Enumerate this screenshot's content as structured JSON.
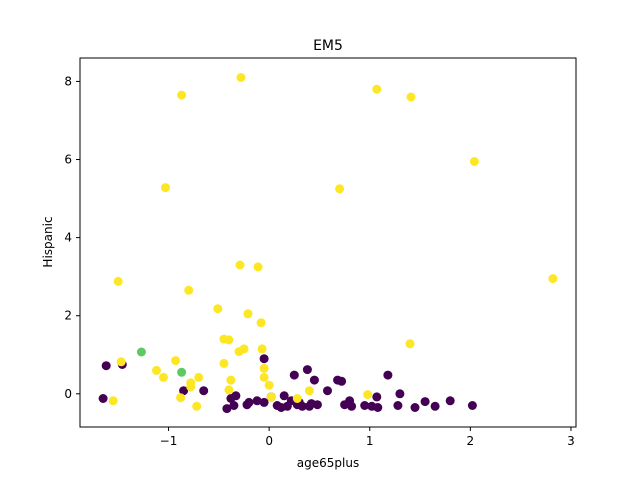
{
  "chart_data": {
    "type": "scatter",
    "title": "EM5",
    "xlabel": "age65plus",
    "ylabel": "Hispanic",
    "xlim": [
      -1.88,
      3.05
    ],
    "ylim": [
      -0.85,
      8.6
    ],
    "x_ticks": [
      -1,
      0,
      1,
      2,
      3
    ],
    "y_ticks": [
      0,
      2,
      4,
      6,
      8
    ],
    "x_tick_labels": [
      "−1",
      "0",
      "1",
      "2",
      "3"
    ],
    "y_tick_labels": [
      "0",
      "2",
      "4",
      "6",
      "8"
    ],
    "grid": false,
    "legend": "none",
    "colors": {
      "dark": "#440154",
      "yellow": "#fde725",
      "green": "#5ec962"
    },
    "series": [
      {
        "color_key": "dark",
        "x": [
          -1.65,
          -1.62,
          -1.46,
          -0.85,
          -0.65,
          -0.42,
          -0.38,
          -0.35,
          -0.33,
          -0.22,
          -0.2,
          -0.12,
          -0.05,
          -0.05,
          0.02,
          0.08,
          0.12,
          0.15,
          0.18,
          0.22,
          0.25,
          0.28,
          0.3,
          0.33,
          0.38,
          0.4,
          0.42,
          0.45,
          0.48,
          0.58,
          0.68,
          0.72,
          0.75,
          0.8,
          0.82,
          0.95,
          1.02,
          1.07,
          1.08,
          1.18,
          1.28,
          1.3,
          1.45,
          1.55,
          1.65,
          1.8,
          2.02
        ],
        "y": [
          -0.12,
          0.72,
          0.75,
          0.08,
          0.08,
          -0.38,
          -0.12,
          -0.3,
          -0.05,
          -0.28,
          -0.22,
          -0.18,
          0.9,
          -0.22,
          -0.08,
          -0.3,
          -0.35,
          -0.05,
          -0.32,
          -0.18,
          0.48,
          -0.28,
          -0.22,
          -0.32,
          0.62,
          -0.32,
          -0.25,
          0.35,
          -0.28,
          0.08,
          0.35,
          0.32,
          -0.28,
          -0.18,
          -0.32,
          -0.3,
          -0.32,
          -0.08,
          -0.35,
          0.48,
          -0.3,
          0.0,
          -0.35,
          -0.2,
          -0.32,
          -0.18,
          -0.3
        ]
      },
      {
        "color_key": "yellow",
        "x": [
          -0.28,
          -0.87,
          1.07,
          1.41,
          2.04,
          -1.03,
          0.7,
          -0.29,
          -0.11,
          -1.5,
          2.82,
          -0.8,
          -0.51,
          -0.21,
          -0.45,
          -0.4,
          -0.3,
          -0.08,
          1.4,
          -0.07,
          -0.25,
          -1.47,
          -0.93,
          -1.12,
          -1.05,
          -0.45,
          -0.05,
          -0.7,
          -0.05,
          -0.38,
          -0.78,
          -0.78,
          0.0,
          -0.4,
          0.4,
          -0.88,
          -0.72,
          -1.55,
          0.98,
          0.28,
          0.02
        ],
        "y": [
          8.1,
          7.65,
          7.8,
          7.6,
          5.95,
          5.28,
          5.25,
          3.3,
          3.25,
          2.88,
          2.95,
          2.65,
          2.18,
          2.05,
          1.4,
          1.38,
          1.08,
          1.82,
          1.28,
          1.15,
          1.15,
          0.82,
          0.85,
          0.6,
          0.42,
          0.78,
          0.65,
          0.42,
          0.42,
          0.35,
          0.28,
          0.18,
          0.22,
          0.1,
          0.08,
          -0.1,
          -0.32,
          -0.18,
          -0.02,
          -0.12,
          -0.08
        ]
      },
      {
        "color_key": "green",
        "x": [
          -1.27,
          -0.87
        ],
        "y": [
          1.07,
          0.55
        ]
      }
    ]
  }
}
